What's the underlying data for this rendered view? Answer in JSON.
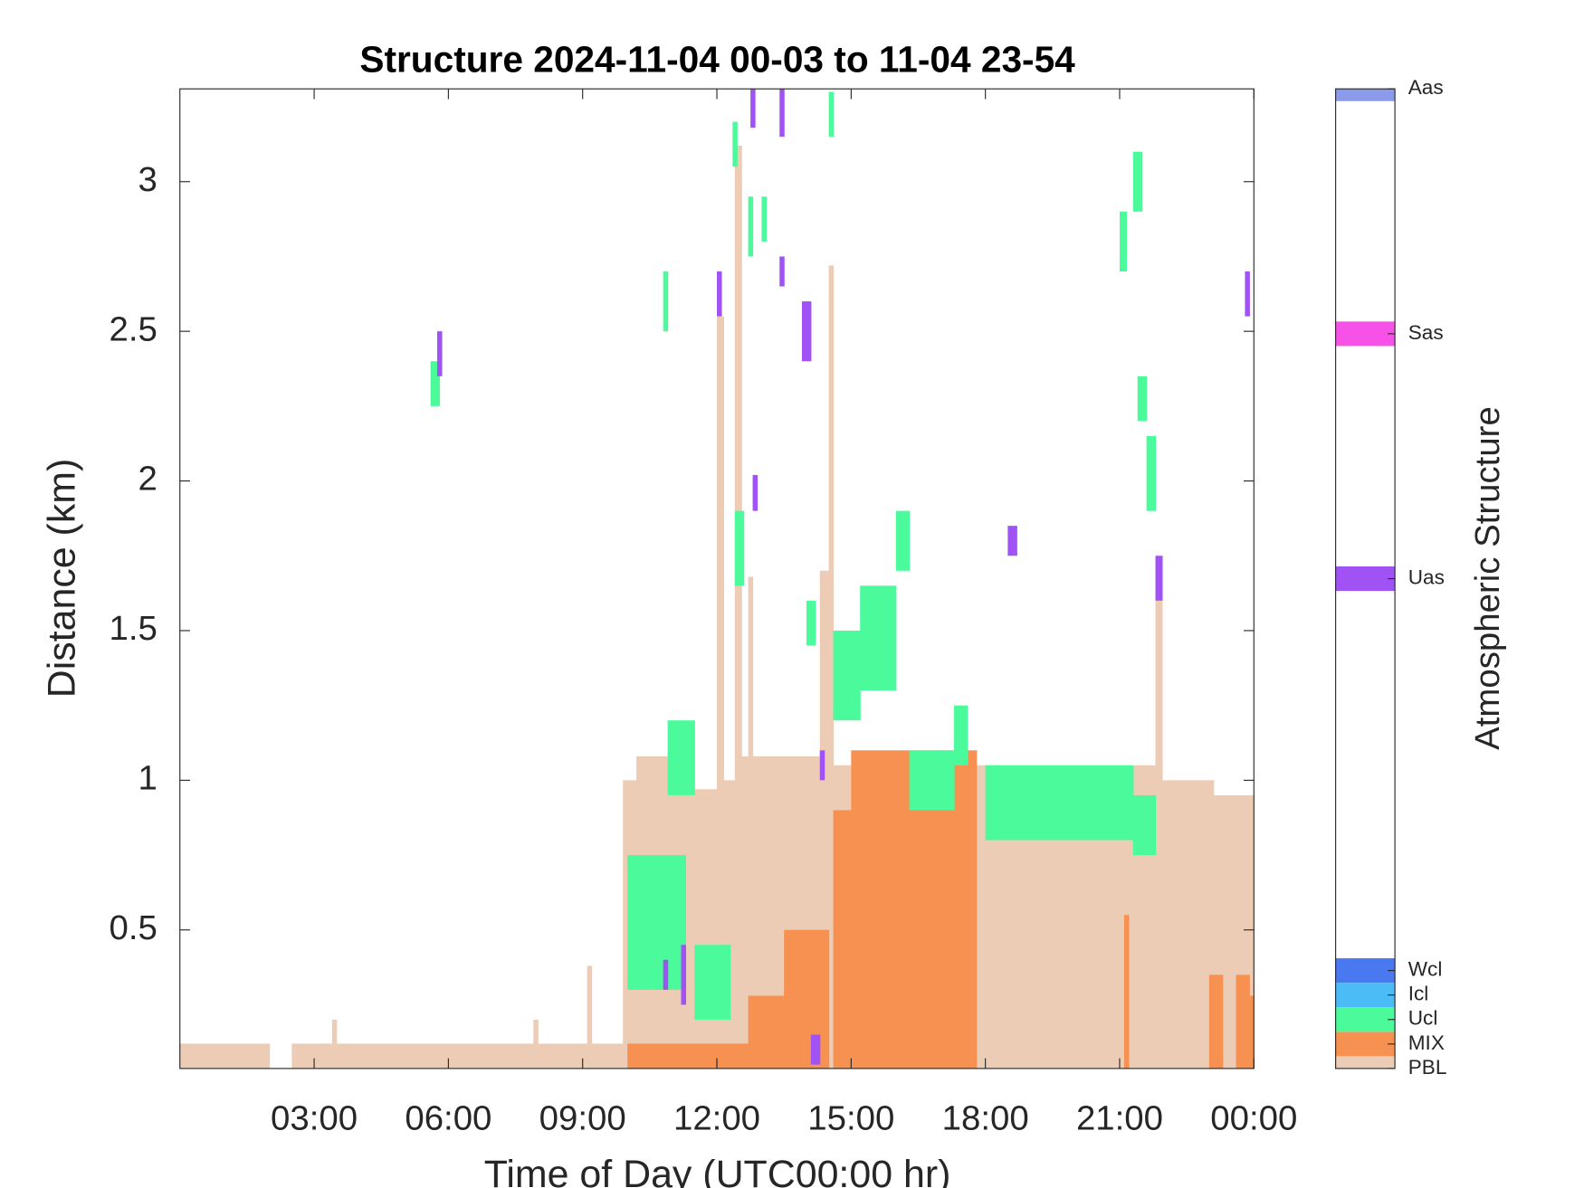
{
  "chart_data": {
    "type": "time-height",
    "title": "Structure 2024-11-04 00-03 to 11-04 23-54",
    "x_label": "Time of Day (UTC00:00 hr)",
    "y_label": "Distance (km)",
    "colorbar_label": "Atmospheric Structure",
    "xlim": [
      0,
      24
    ],
    "ylim": [
      0.037,
      3.31
    ],
    "xticks": [
      {
        "value": 3,
        "label": "03:00"
      },
      {
        "value": 6,
        "label": "06:00"
      },
      {
        "value": 9,
        "label": "09:00"
      },
      {
        "value": 12,
        "label": "12:00"
      },
      {
        "value": 15,
        "label": "15:00"
      },
      {
        "value": 18,
        "label": "18:00"
      },
      {
        "value": 21,
        "label": "21:00"
      },
      {
        "value": 24,
        "label": "00:00"
      }
    ],
    "yticks": [
      0.5,
      1,
      1.5,
      2,
      2.5,
      3
    ],
    "clim": [
      0,
      40
    ],
    "classes": [
      {
        "name": "PBL",
        "value": 0,
        "color": "#ecccb5"
      },
      {
        "name": "MIX",
        "value": 1,
        "color": "#f79152"
      },
      {
        "name": "Ucl",
        "value": 2,
        "color": "#4bfa9a"
      },
      {
        "name": "Icl",
        "value": 3,
        "color": "#4cbcf7"
      },
      {
        "name": "Wcl",
        "value": 4,
        "color": "#4a78f0"
      },
      {
        "name": "Uas",
        "value": 20,
        "color": "#a052f5"
      },
      {
        "name": "Sas",
        "value": 30,
        "color": "#f652e8"
      },
      {
        "name": "Aas",
        "value": 40,
        "color": "#8b9aea"
      }
    ],
    "blocks": [
      {
        "class": "PBL",
        "t0": 0,
        "t1": 2.0,
        "z0": 0.037,
        "z1": 0.12
      },
      {
        "class": "PBL",
        "t0": 2.5,
        "t1": 9.9,
        "z0": 0.037,
        "z1": 0.12
      },
      {
        "class": "PBL",
        "t0": 3.4,
        "t1": 3.5,
        "z0": 0.037,
        "z1": 0.2
      },
      {
        "class": "PBL",
        "t0": 7.9,
        "t1": 8.0,
        "z0": 0.037,
        "z1": 0.2
      },
      {
        "class": "PBL",
        "t0": 9.1,
        "t1": 9.2,
        "z0": 0.037,
        "z1": 0.38
      },
      {
        "class": "PBL",
        "t0": 9.9,
        "t1": 10.2,
        "z0": 0.037,
        "z1": 1.0
      },
      {
        "class": "PBL",
        "t0": 10.2,
        "t1": 11.0,
        "z0": 0.037,
        "z1": 1.08
      },
      {
        "class": "PBL",
        "t0": 11.0,
        "t1": 12.0,
        "z0": 0.037,
        "z1": 0.97
      },
      {
        "class": "PBL",
        "t0": 12.0,
        "t1": 12.15,
        "z0": 0.037,
        "z1": 2.55
      },
      {
        "class": "PBL",
        "t0": 12.15,
        "t1": 12.4,
        "z0": 0.037,
        "z1": 1.0
      },
      {
        "class": "PBL",
        "t0": 12.4,
        "t1": 12.55,
        "z0": 0.037,
        "z1": 3.12
      },
      {
        "class": "PBL",
        "t0": 12.55,
        "t1": 14.3,
        "z0": 0.037,
        "z1": 1.08
      },
      {
        "class": "PBL",
        "t0": 12.7,
        "t1": 12.8,
        "z0": 0.037,
        "z1": 1.68
      },
      {
        "class": "PBL",
        "t0": 14.3,
        "t1": 14.5,
        "z0": 0.037,
        "z1": 1.7
      },
      {
        "class": "PBL",
        "t0": 14.5,
        "t1": 14.6,
        "z0": 0.037,
        "z1": 2.72
      },
      {
        "class": "PBL",
        "t0": 14.6,
        "t1": 17.8,
        "z0": 0.037,
        "z1": 1.05
      },
      {
        "class": "PBL",
        "t0": 17.8,
        "t1": 21.8,
        "z0": 0.037,
        "z1": 1.05
      },
      {
        "class": "PBL",
        "t0": 21.8,
        "t1": 21.95,
        "z0": 0.037,
        "z1": 1.6
      },
      {
        "class": "PBL",
        "t0": 21.95,
        "t1": 23.1,
        "z0": 0.037,
        "z1": 1.0
      },
      {
        "class": "PBL",
        "t0": 23.1,
        "t1": 24,
        "z0": 0.037,
        "z1": 0.95
      },
      {
        "class": "MIX",
        "t0": 10.0,
        "t1": 12.7,
        "z0": 0.037,
        "z1": 0.12
      },
      {
        "class": "MIX",
        "t0": 12.7,
        "t1": 13.5,
        "z0": 0.037,
        "z1": 0.28
      },
      {
        "class": "MIX",
        "t0": 13.5,
        "t1": 14.5,
        "z0": 0.037,
        "z1": 0.5
      },
      {
        "class": "MIX",
        "t0": 14.6,
        "t1": 15.0,
        "z0": 0.037,
        "z1": 0.9
      },
      {
        "class": "MIX",
        "t0": 15.0,
        "t1": 17.8,
        "z0": 0.037,
        "z1": 1.1
      },
      {
        "class": "MIX",
        "t0": 21.1,
        "t1": 21.2,
        "z0": 0.037,
        "z1": 0.55
      },
      {
        "class": "MIX",
        "t0": 23.0,
        "t1": 23.3,
        "z0": 0.037,
        "z1": 0.35
      },
      {
        "class": "MIX",
        "t0": 23.6,
        "t1": 23.9,
        "z0": 0.037,
        "z1": 0.35
      },
      {
        "class": "MIX",
        "t0": 23.9,
        "t1": 24,
        "z0": 0.037,
        "z1": 0.28
      },
      {
        "class": "Ucl",
        "t0": 10.0,
        "t1": 11.3,
        "z0": 0.3,
        "z1": 0.75
      },
      {
        "class": "Ucl",
        "t0": 10.9,
        "t1": 11.5,
        "z0": 0.95,
        "z1": 1.2
      },
      {
        "class": "Ucl",
        "t0": 11.5,
        "t1": 12.3,
        "z0": 0.2,
        "z1": 0.45
      },
      {
        "class": "Ucl",
        "t0": 12.4,
        "t1": 12.6,
        "z0": 1.65,
        "z1": 1.9
      },
      {
        "class": "Ucl",
        "t0": 12.35,
        "t1": 12.45,
        "z0": 3.05,
        "z1": 3.2
      },
      {
        "class": "Ucl",
        "t0": 12.7,
        "t1": 12.8,
        "z0": 2.75,
        "z1": 2.95
      },
      {
        "class": "Ucl",
        "t0": 13.0,
        "t1": 13.1,
        "z0": 2.8,
        "z1": 2.95
      },
      {
        "class": "Ucl",
        "t0": 14.0,
        "t1": 14.2,
        "z0": 1.45,
        "z1": 1.6
      },
      {
        "class": "Ucl",
        "t0": 14.5,
        "t1": 14.6,
        "z0": 3.15,
        "z1": 3.3
      },
      {
        "class": "Ucl",
        "t0": 14.6,
        "t1": 15.2,
        "z0": 1.2,
        "z1": 1.5
      },
      {
        "class": "Ucl",
        "t0": 15.2,
        "t1": 16.0,
        "z0": 1.3,
        "z1": 1.65
      },
      {
        "class": "Ucl",
        "t0": 16.0,
        "t1": 16.3,
        "z0": 1.7,
        "z1": 1.9
      },
      {
        "class": "Ucl",
        "t0": 16.3,
        "t1": 17.3,
        "z0": 0.9,
        "z1": 1.1
      },
      {
        "class": "Ucl",
        "t0": 17.3,
        "t1": 17.6,
        "z0": 1.05,
        "z1": 1.25
      },
      {
        "class": "Ucl",
        "t0": 18.0,
        "t1": 21.3,
        "z0": 0.8,
        "z1": 1.05
      },
      {
        "class": "Ucl",
        "t0": 21.3,
        "t1": 21.8,
        "z0": 0.75,
        "z1": 0.95
      },
      {
        "class": "Ucl",
        "t0": 21.4,
        "t1": 21.6,
        "z0": 2.2,
        "z1": 2.35
      },
      {
        "class": "Ucl",
        "t0": 21.6,
        "t1": 21.8,
        "z0": 1.9,
        "z1": 2.15
      },
      {
        "class": "Ucl",
        "t0": 21.0,
        "t1": 21.15,
        "z0": 2.7,
        "z1": 2.9
      },
      {
        "class": "Ucl",
        "t0": 21.3,
        "t1": 21.5,
        "z0": 2.9,
        "z1": 3.1
      },
      {
        "class": "Ucl",
        "t0": 10.8,
        "t1": 10.9,
        "z0": 2.5,
        "z1": 2.7
      },
      {
        "class": "Ucl",
        "t0": 5.6,
        "t1": 5.8,
        "z0": 2.25,
        "z1": 2.4
      },
      {
        "class": "Uas",
        "t0": 5.75,
        "t1": 5.85,
        "z0": 2.35,
        "z1": 2.5
      },
      {
        "class": "Uas",
        "t0": 12.0,
        "t1": 12.1,
        "z0": 2.55,
        "z1": 2.7
      },
      {
        "class": "Uas",
        "t0": 12.75,
        "t1": 12.85,
        "z0": 3.18,
        "z1": 3.31
      },
      {
        "class": "Uas",
        "t0": 13.4,
        "t1": 13.5,
        "z0": 3.15,
        "z1": 3.31
      },
      {
        "class": "Uas",
        "t0": 13.4,
        "t1": 13.5,
        "z0": 2.65,
        "z1": 2.75
      },
      {
        "class": "Uas",
        "t0": 13.9,
        "t1": 14.1,
        "z0": 2.4,
        "z1": 2.6
      },
      {
        "class": "Uas",
        "t0": 12.8,
        "t1": 12.9,
        "z0": 1.9,
        "z1": 2.02
      },
      {
        "class": "Uas",
        "t0": 14.1,
        "t1": 14.3,
        "z0": 0.05,
        "z1": 0.15
      },
      {
        "class": "Uas",
        "t0": 14.3,
        "t1": 14.4,
        "z0": 1.0,
        "z1": 1.1
      },
      {
        "class": "Uas",
        "t0": 21.8,
        "t1": 21.95,
        "z0": 1.6,
        "z1": 1.75
      },
      {
        "class": "Uas",
        "t0": 23.8,
        "t1": 23.9,
        "z0": 2.55,
        "z1": 2.7
      },
      {
        "class": "Uas",
        "t0": 18.5,
        "t1": 18.7,
        "z0": 1.75,
        "z1": 1.85
      },
      {
        "class": "Uas",
        "t0": 11.2,
        "t1": 11.3,
        "z0": 0.25,
        "z1": 0.45
      },
      {
        "class": "Uas",
        "t0": 10.8,
        "t1": 10.9,
        "z0": 0.3,
        "z1": 0.4
      }
    ]
  }
}
